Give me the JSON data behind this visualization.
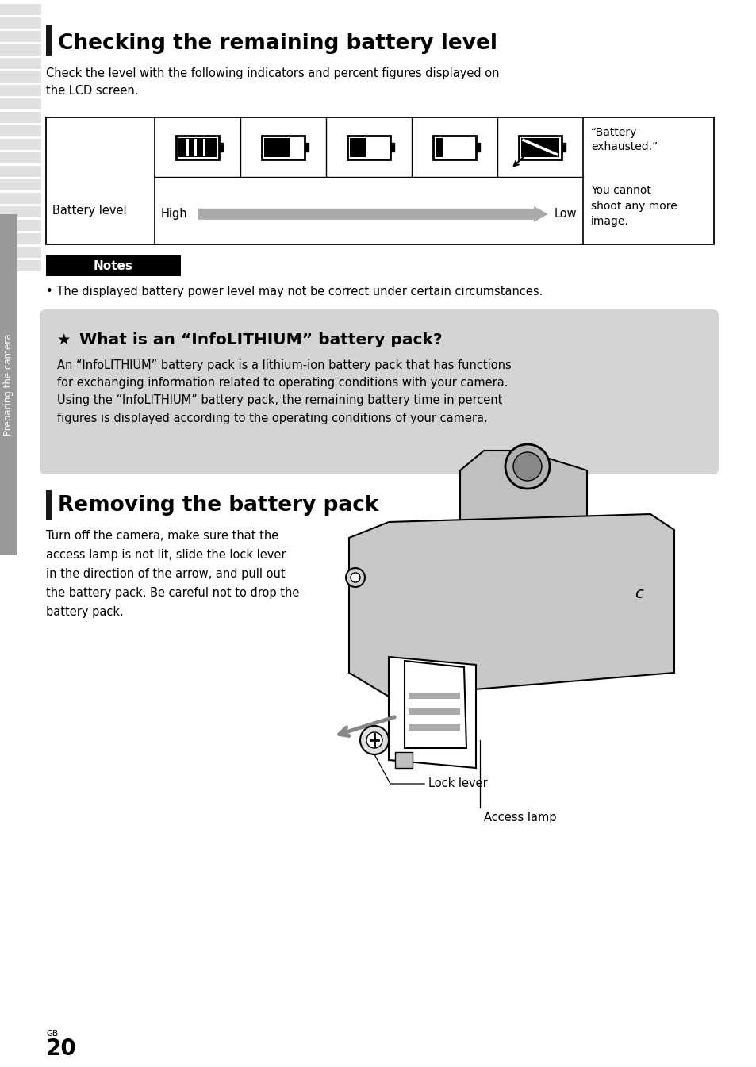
{
  "title1": "Checking the remaining battery level",
  "para1": "Check the level with the following indicators and percent figures displayed on\nthe LCD screen.",
  "battery_label": "Battery level",
  "high_text": "High",
  "low_text": "Low",
  "battery_exhausted": "“Battery\nexhausted.”",
  "cannot_shoot": "You cannot\nshoot any more\nimage.",
  "notes_label": "Notes",
  "note1": "• The displayed battery power level may not be correct under certain circumstances.",
  "info_title": "What is an “InfoLITHIUM” battery pack?",
  "info_body": "An “InfoLITHIUM” battery pack is a lithium-ion battery pack that has functions\nfor exchanging information related to operating conditions with your camera.\nUsing the “InfoLITHIUM” battery pack, the remaining battery time in percent\nfigures is displayed according to the operating conditions of your camera.",
  "title2": "Removing the battery pack",
  "para2": "Turn off the camera, make sure that the\naccess lamp is not lit, slide the lock lever\nin the direction of the arrow, and pull out\nthe battery pack. Be careful not to drop the\nbattery pack.",
  "lock_lever": "Lock lever",
  "access_lamp": "Access lamp",
  "page_label": "GB",
  "page_num": "20",
  "sidebar_text": "Preparing the camera",
  "bg_color": "#ffffff",
  "notes_bg": "#000000",
  "info_bg": "#d4d4d4",
  "section_bar": "#1a1a1a",
  "table_border": "#000000",
  "text_color": "#000000",
  "stripe_pairs": [
    [
      "#e8e8e8",
      "#d0d0d0"
    ],
    [
      "#e8e8e8",
      "#d0d0d0"
    ],
    [
      "#e8e8e8",
      "#d0d0d0"
    ],
    [
      "#e8e8e8",
      "#d0d0d0"
    ],
    [
      "#e8e8e8",
      "#d0d0d0"
    ],
    [
      "#e8e8e8",
      "#d0d0d0"
    ],
    [
      "#e8e8e8",
      "#d0d0d0"
    ],
    [
      "#e8e8e8",
      "#d0d0d0"
    ],
    [
      "#e8e8e8",
      "#d0d0d0"
    ],
    [
      "#e8e8e8",
      "#d0d0d0"
    ],
    [
      "#e8e8e8",
      "#d0d0d0"
    ],
    [
      "#e8e8e8",
      "#d0d0d0"
    ],
    [
      "#e8e8e8",
      "#d0d0d0"
    ],
    [
      "#e8e8e8",
      "#d0d0d0"
    ],
    [
      "#e8e8e8",
      "#d0d0d0"
    ],
    [
      "#e8e8e8",
      "#d0d0d0"
    ]
  ],
  "sidebar_bg": "#999999"
}
